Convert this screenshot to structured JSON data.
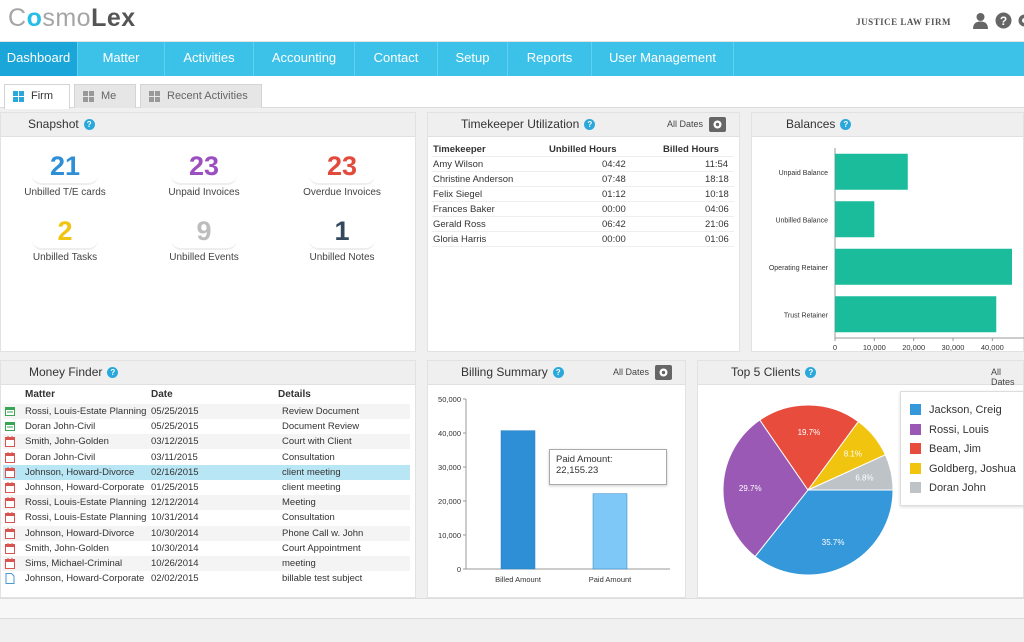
{
  "header": {
    "logo_c": "C",
    "logo_o": "o",
    "logo_smo": "smo",
    "logo_lex": "Lex",
    "firm_name": "JUSTICE LAW FIRM",
    "icons": [
      "user-icon",
      "help-icon",
      "gear-icon"
    ]
  },
  "nav": {
    "items": [
      {
        "label": "Dashboard",
        "active": true
      },
      {
        "label": "Matter"
      },
      {
        "label": "Activities"
      },
      {
        "label": "Accounting"
      },
      {
        "label": "Contact"
      },
      {
        "label": "Setup"
      },
      {
        "label": "Reports"
      },
      {
        "label": "User Management"
      }
    ]
  },
  "tabs": [
    {
      "label": "Firm",
      "active": true
    },
    {
      "label": "Me"
    },
    {
      "label": "Recent Activities"
    }
  ],
  "snapshot": {
    "title": "Snapshot",
    "items": [
      {
        "value": "21",
        "label": "Unbilled T/E cards",
        "color": "#2e8fd6"
      },
      {
        "value": "23",
        "label": "Unpaid Invoices",
        "color": "#9b4fc1"
      },
      {
        "value": "23",
        "label": "Overdue Invoices",
        "color": "#e24a3b"
      },
      {
        "value": "2",
        "label": "Unbilled Tasks",
        "color": "#f1c40f"
      },
      {
        "value": "9",
        "label": "Unbilled Events",
        "color": "#bdbdbd"
      },
      {
        "value": "1",
        "label": "Unbilled Notes",
        "color": "#34495e"
      }
    ]
  },
  "timekeeper": {
    "title": "Timekeeper Utilization",
    "all_dates": "All Dates",
    "headers": [
      "Timekeeper",
      "Unbilled Hours",
      "Billed Hours"
    ],
    "rows": [
      [
        "Amy Wilson",
        "04:42",
        "11:54"
      ],
      [
        "Christine Anderson",
        "07:48",
        "18:18"
      ],
      [
        "Felix Siegel",
        "01:12",
        "10:18"
      ],
      [
        "Frances Baker",
        "00:00",
        "04:06"
      ],
      [
        "Gerald Ross",
        "06:42",
        "21:06"
      ],
      [
        "Gloria Harris",
        "00:00",
        "01:06"
      ]
    ]
  },
  "balances": {
    "title": "Balances"
  },
  "money_finder": {
    "title": "Money Finder",
    "headers": [
      "Matter",
      "Date",
      "Details"
    ],
    "rows": [
      {
        "matter": "Rossi, Louis-Estate Planning",
        "date": "05/25/2015",
        "details": "Review Document",
        "icon": "green-card-icon"
      },
      {
        "matter": "Doran John-Civil",
        "date": "05/25/2015",
        "details": "Document Review",
        "icon": "green-card-icon"
      },
      {
        "matter": "Smith, John-Golden",
        "date": "03/12/2015",
        "details": "Court with Client",
        "icon": "calendar-icon"
      },
      {
        "matter": "Doran John-Civil",
        "date": "03/11/2015",
        "details": "Consultation",
        "icon": "calendar-icon"
      },
      {
        "matter": "Johnson, Howard-Divorce",
        "date": "02/16/2015",
        "details": "client meeting",
        "icon": "calendar-icon",
        "selected": true
      },
      {
        "matter": "Johnson, Howard-Corporate",
        "date": "01/25/2015",
        "details": "client meeting",
        "icon": "calendar-icon"
      },
      {
        "matter": "Rossi, Louis-Estate Planning",
        "date": "12/12/2014",
        "details": "Meeting",
        "icon": "calendar-icon"
      },
      {
        "matter": "Rossi, Louis-Estate Planning",
        "date": "10/31/2014",
        "details": "Consultation",
        "icon": "calendar-icon"
      },
      {
        "matter": "Johnson, Howard-Divorce",
        "date": "10/30/2014",
        "details": "Phone Call w. John",
        "icon": "calendar-icon"
      },
      {
        "matter": "Smith, John-Golden",
        "date": "10/30/2014",
        "details": "Court Appointment",
        "icon": "calendar-icon"
      },
      {
        "matter": "Sims, Michael-Criminal",
        "date": "10/26/2014",
        "details": "meeting",
        "icon": "calendar-icon"
      },
      {
        "matter": "Johnson, Howard-Corporate",
        "date": "02/02/2015",
        "details": "billable test subject",
        "icon": "document-icon"
      }
    ]
  },
  "billing_summary": {
    "title": "Billing Summary",
    "all_dates": "All Dates",
    "tooltip_label": "Paid Amount:",
    "tooltip_value": "22,155.23"
  },
  "top_clients": {
    "title": "Top 5 Clients",
    "all_dates": "All Dates"
  },
  "chart_data": [
    {
      "type": "bar",
      "orientation": "horizontal",
      "categories": [
        "Unpaid Balance",
        "Unbilled Balance",
        "Operating Retainer",
        "Trust Retainer"
      ],
      "values": [
        18500,
        10000,
        45000,
        41000
      ],
      "xticks": [
        "0",
        "10,000",
        "20,000",
        "30,000",
        "40,000"
      ],
      "xlim": [
        0,
        45000
      ],
      "color": "#1abc9c"
    },
    {
      "type": "bar",
      "categories": [
        "Billed Amount",
        "Paid Amount"
      ],
      "values": [
        40700,
        22155.23
      ],
      "yticks": [
        "0",
        "10,000",
        "20,000",
        "30,000",
        "40,000",
        "50,000"
      ],
      "ylim": [
        0,
        50000
      ],
      "colors": [
        "#2e8fd6",
        "#7ec8f7"
      ]
    },
    {
      "type": "pie",
      "labels": [
        "Jackson, Creig",
        "Rossi, Louis",
        "Beam, Jim",
        "Goldberg, Joshua",
        "Doran John"
      ],
      "values": [
        35.7,
        29.7,
        19.7,
        8.1,
        6.8
      ],
      "display": [
        "35.7%",
        "29.7%",
        "19.7%",
        "8.1%",
        "6.8%"
      ],
      "colors": [
        "#3498db",
        "#9b59b6",
        "#e74c3c",
        "#f1c40f",
        "#bdc3c7"
      ]
    }
  ]
}
